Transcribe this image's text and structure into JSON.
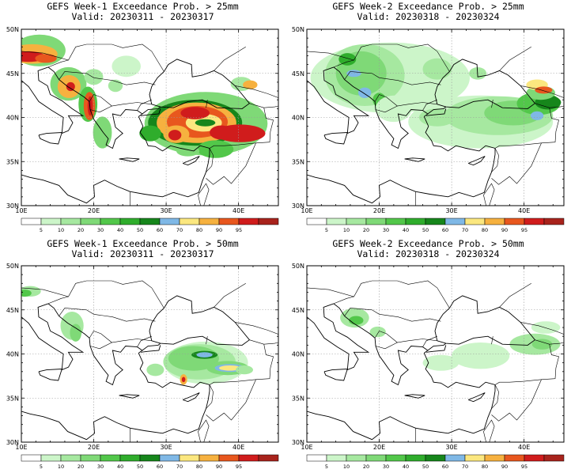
{
  "colorbar": {
    "levels": [
      "5",
      "10",
      "20",
      "30",
      "40",
      "50",
      "60",
      "70",
      "80",
      "90",
      "95"
    ],
    "colors": [
      "#ffffff",
      "#ccf5c9",
      "#a6e8a0",
      "#7fd977",
      "#52c74a",
      "#2fad2c",
      "#16861b",
      "#7fb8e6",
      "#fbe77f",
      "#f6b13f",
      "#e8571e",
      "#d01c1c",
      "#a8231c"
    ]
  },
  "axes": {
    "x_ticks": [
      "10E",
      "20E",
      "30E",
      "40E"
    ],
    "y_ticks": [
      "50N",
      "45N",
      "40N",
      "35N",
      "30N"
    ]
  },
  "panels": [
    {
      "line1": "GEFS Week-1 Exceedance Prob. > 25mm",
      "line2": "Valid: 20230311 - 20230317"
    },
    {
      "line1": "GEFS Week-2 Exceedance Prob. > 25mm",
      "line2": "Valid: 20230318 - 20230324"
    },
    {
      "line1": "GEFS Week-1 Exceedance Prob. > 50mm",
      "line2": "Valid: 20230311 - 20230317"
    },
    {
      "line1": "GEFS Week-2 Exceedance Prob. > 50mm",
      "line2": "Valid: 20230318 - 20230324"
    }
  ]
}
